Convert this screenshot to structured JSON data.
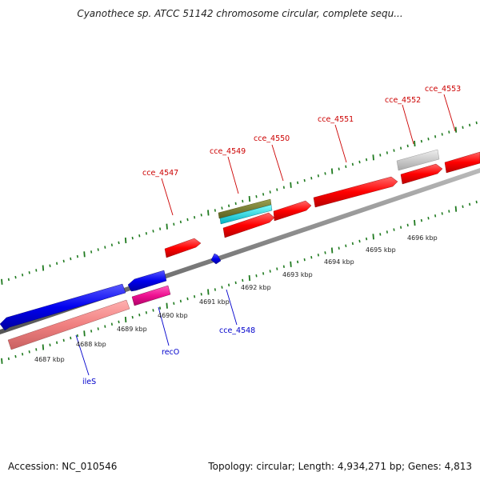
{
  "title": "Cyanothece sp. ATCC 51142 chromosome circular, complete sequ...",
  "footer": {
    "accession": "Accession: NC_010546",
    "summary": "Topology: circular; Length: 4,934,271 bp; Genes: 4,813"
  },
  "colors": {
    "forward_label": "#cc0000",
    "reverse_label": "#0000cc",
    "tick": "#1f7a1f",
    "axis": "#888888"
  },
  "scale_labels": [
    "4687 kbp",
    "4688 kbp",
    "4689 kbp",
    "4690 kbp",
    "4691 kbp",
    "4692 kbp",
    "4693 kbp",
    "4694 kbp",
    "4695 kbp",
    "4696 kbp"
  ],
  "genes": {
    "forward": [
      "cce_4547",
      "cce_4549",
      "cce_4550",
      "cce_4551",
      "cce_4552",
      "cce_4553"
    ],
    "reverse": [
      "ileS",
      "recO",
      "cce_4548"
    ]
  }
}
